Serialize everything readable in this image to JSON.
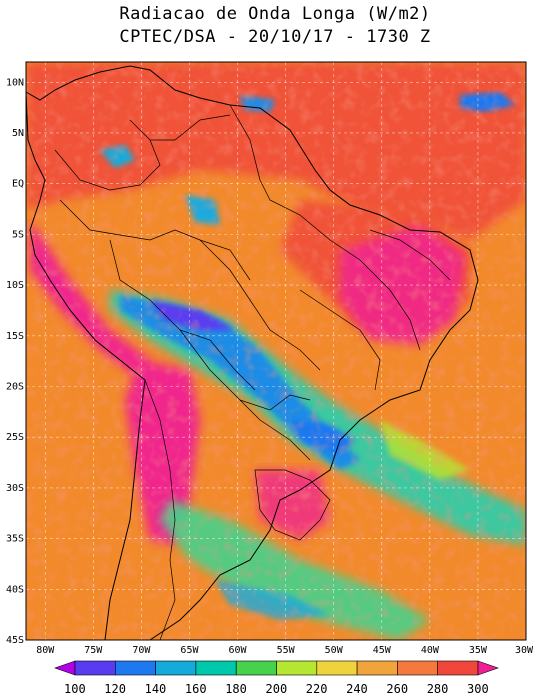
{
  "header": {
    "title_line1": "Radiacao de Onda Longa (W/m2)",
    "title_line2": "CPTEC/DSA - 20/10/17 - 1730 Z"
  },
  "map": {
    "lat_labels": [
      "10N",
      "5N",
      "EQ",
      "5S",
      "10S",
      "15S",
      "20S",
      "25S",
      "30S",
      "35S",
      "40S",
      "45S"
    ],
    "lon_labels": [
      "80W",
      "75W",
      "70W",
      "65W",
      "60W",
      "55W",
      "50W",
      "45W",
      "40W",
      "35W",
      "30W"
    ],
    "background_color": "#f28a2c"
  },
  "colorbar": {
    "labels": [
      "100",
      "120",
      "140",
      "160",
      "180",
      "200",
      "220",
      "240",
      "260",
      "280",
      "300"
    ],
    "colors": [
      "#b400e6",
      "#5a3cf0",
      "#1e78f0",
      "#14aadc",
      "#00c8aa",
      "#46d24b",
      "#b4e632",
      "#f0d23c",
      "#f0a53c",
      "#f5783c",
      "#f0463c",
      "#f01e96"
    ]
  }
}
